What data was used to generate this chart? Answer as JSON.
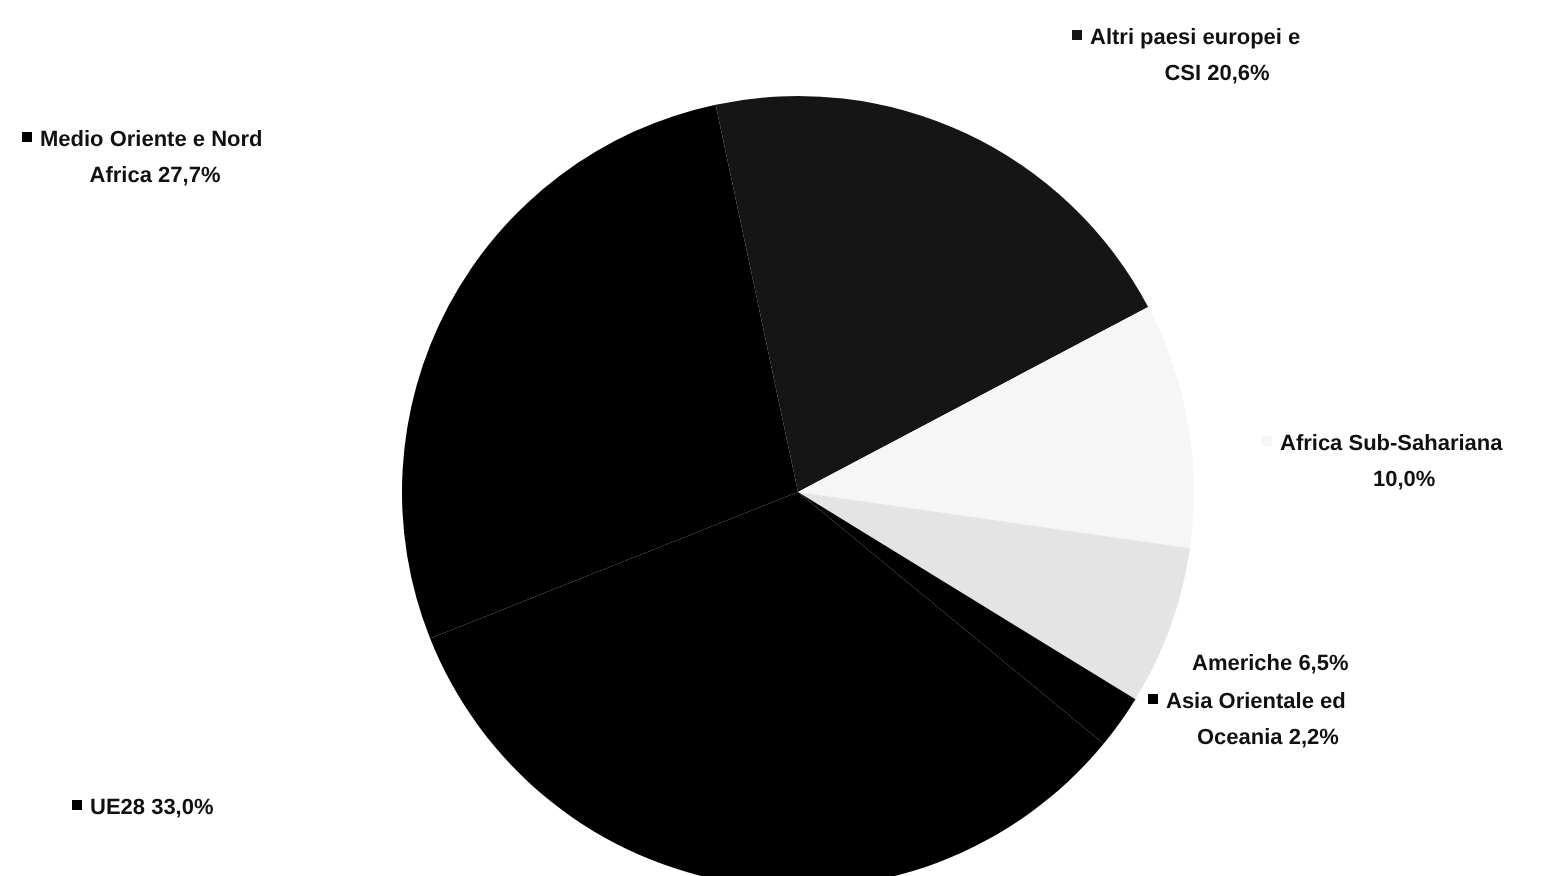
{
  "chart_data": {
    "type": "pie",
    "categories": [
      "Altri paesi europei e CSI",
      "Africa Sub-Sahariana",
      "Americhe",
      "Asia Orientale ed Oceania",
      "UE28",
      "Medio Oriente e Nord Africa"
    ],
    "values": [
      20.6,
      10.0,
      6.5,
      2.2,
      33.0,
      27.7
    ],
    "colors": [
      "#151515",
      "#f6f6f6",
      "#e4e4e4",
      "#000000",
      "#000000",
      "#000000"
    ],
    "legend": "top left",
    "value_labels": [
      "20,6%",
      "10,0%",
      "6,5%",
      "2,2%",
      "33,0%",
      "27,7%"
    ]
  }
}
